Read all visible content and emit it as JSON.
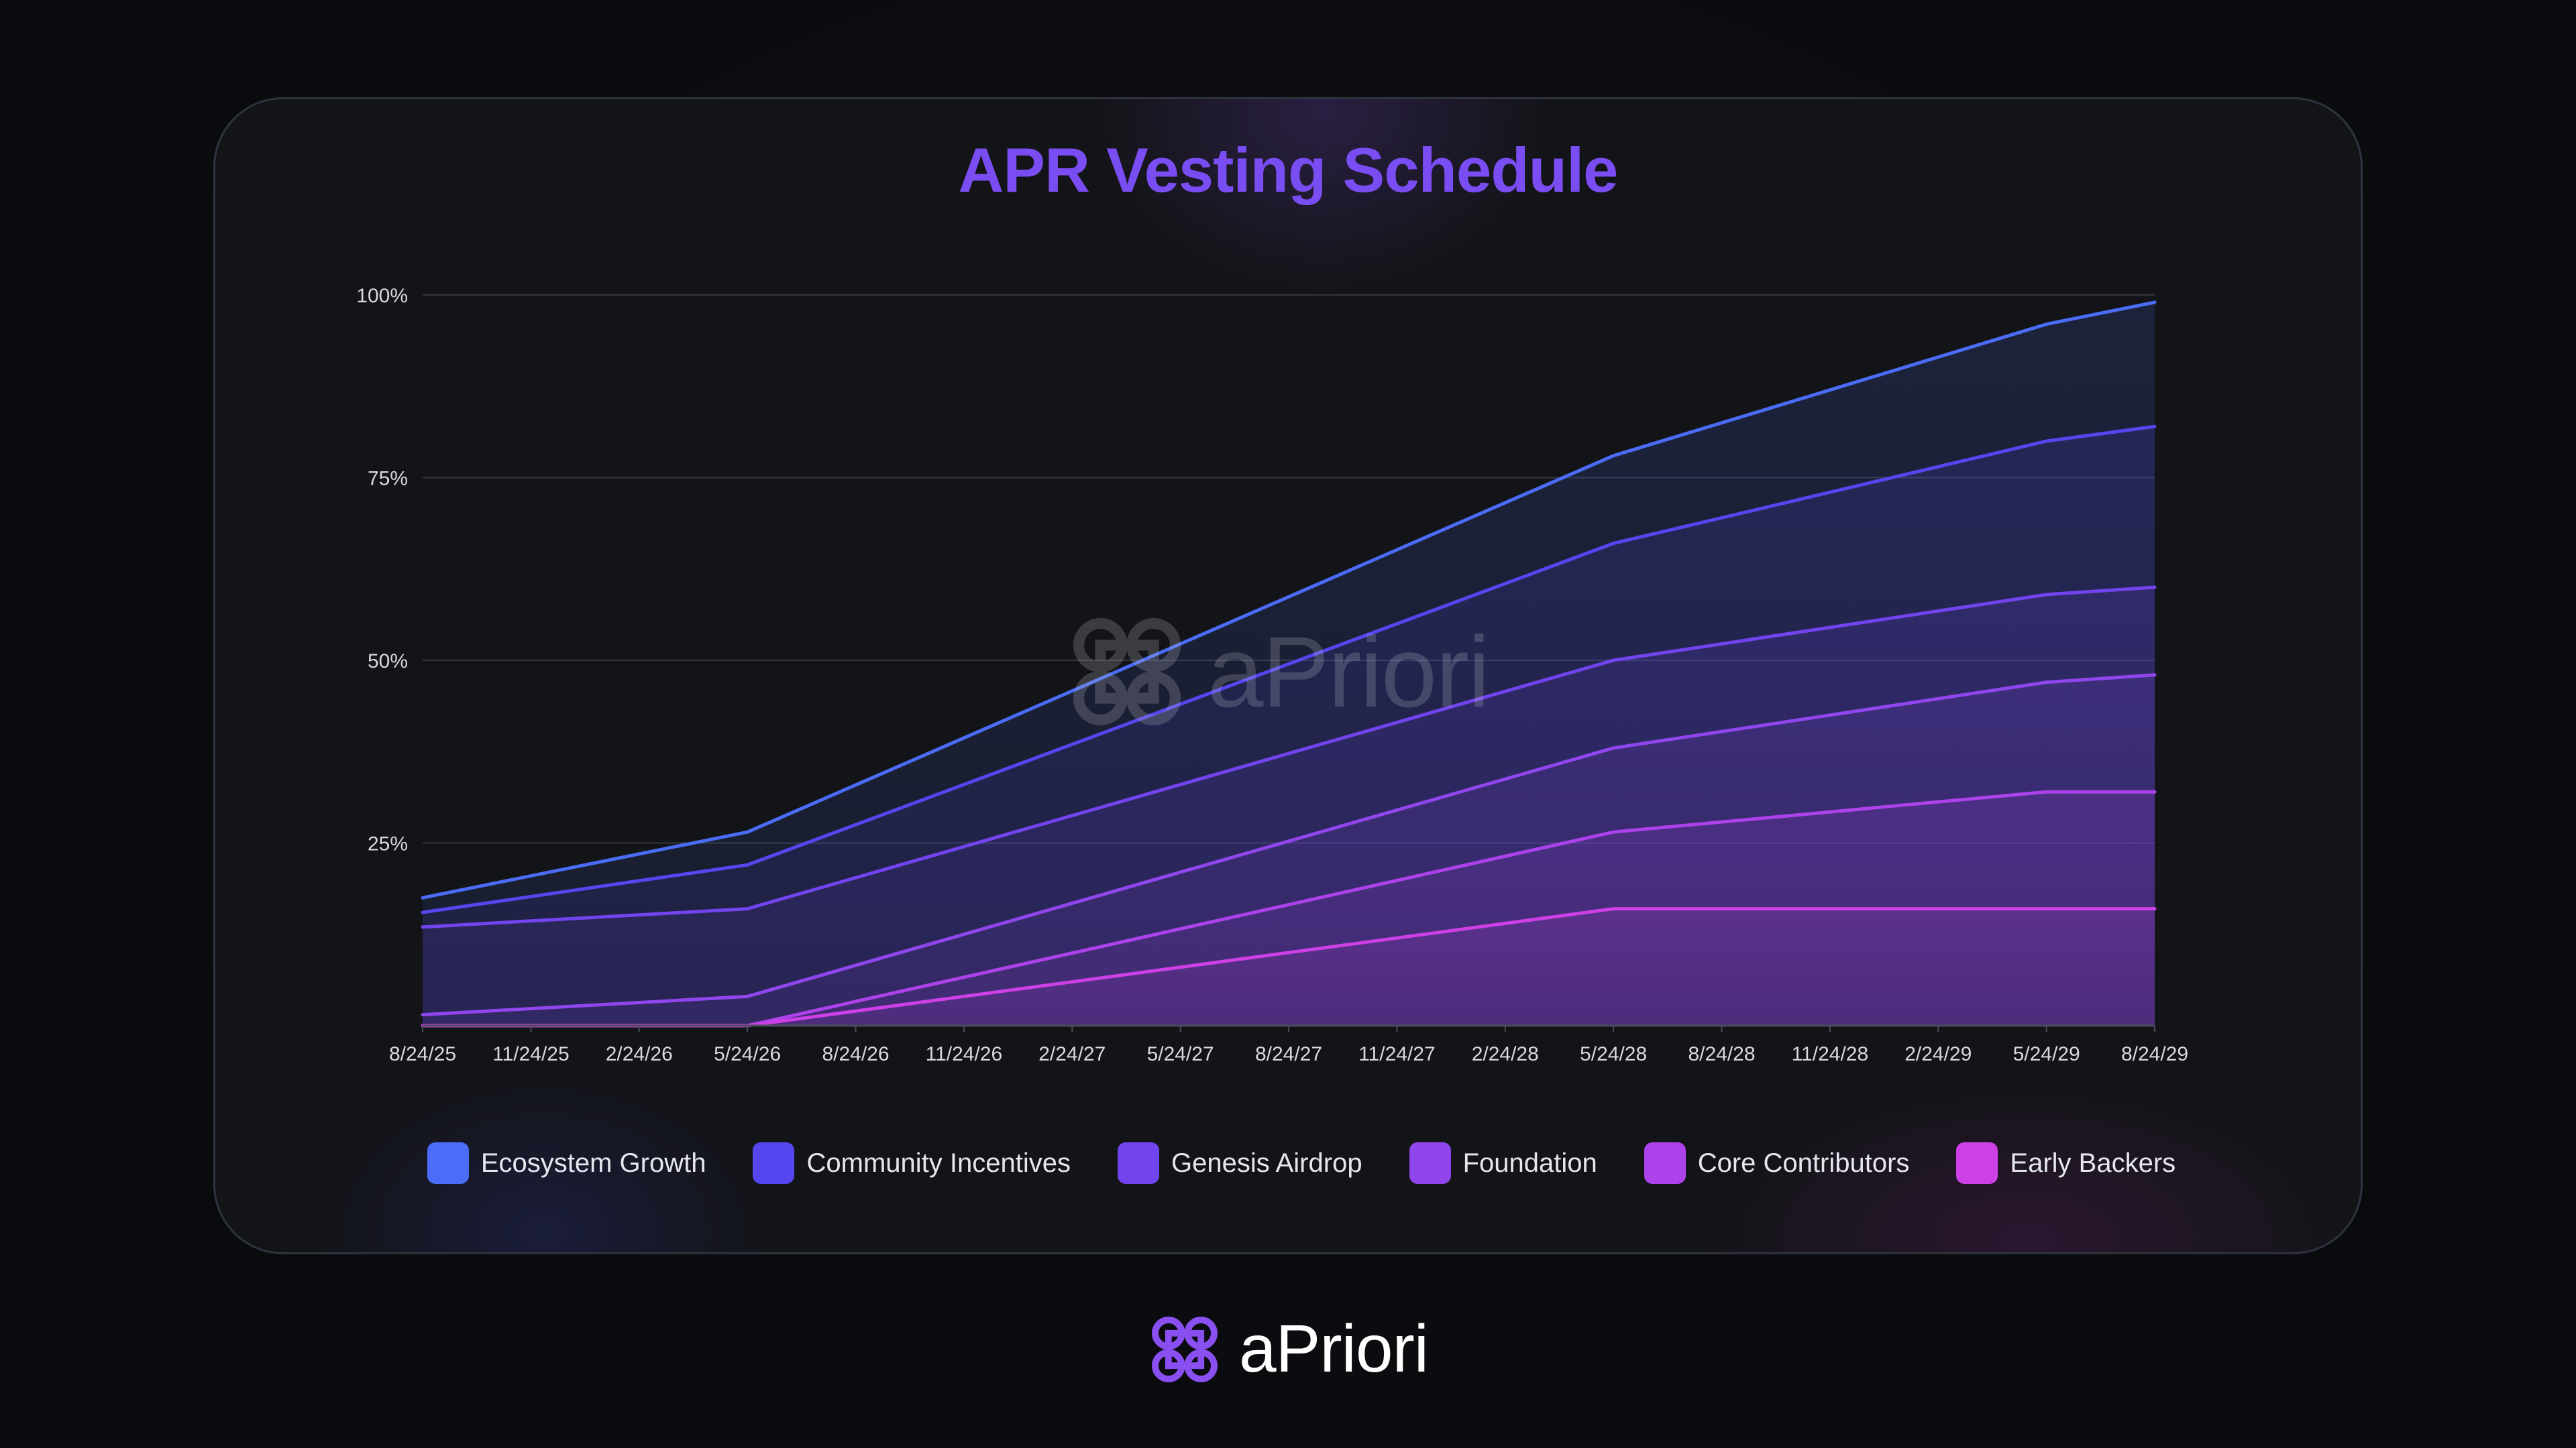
{
  "chart_data": {
    "type": "area",
    "title": "APR Vesting Schedule",
    "xlabel": "",
    "ylabel": "",
    "ylim": [
      0,
      100
    ],
    "yticks": [
      "100%",
      "75%",
      "50%",
      "25%"
    ],
    "ytick_values": [
      100,
      75,
      50,
      25
    ],
    "grid": true,
    "legend_position": "bottom",
    "categories": [
      "8/24/25",
      "11/24/25",
      "2/24/26",
      "5/24/26",
      "8/24/26",
      "11/24/26",
      "2/24/27",
      "5/24/27",
      "8/24/27",
      "11/24/27",
      "2/24/28",
      "5/24/28",
      "8/24/28",
      "11/24/28",
      "2/24/29",
      "5/24/29",
      "8/24/29"
    ],
    "series": [
      {
        "name": "Ecosystem Growth",
        "color": "#4a6cf7",
        "points": [
          [
            0,
            17.5
          ],
          [
            3,
            26.5
          ],
          [
            11,
            78
          ],
          [
            15,
            96
          ],
          [
            16,
            99
          ]
        ]
      },
      {
        "name": "Community Incentives",
        "color": "#5646f0",
        "points": [
          [
            0,
            15.5
          ],
          [
            3,
            22
          ],
          [
            11,
            66
          ],
          [
            15,
            80
          ],
          [
            16,
            82
          ]
        ]
      },
      {
        "name": "Genesis Airdrop",
        "color": "#7244ee",
        "points": [
          [
            0,
            13.5
          ],
          [
            3,
            16
          ],
          [
            11,
            50
          ],
          [
            15,
            59
          ],
          [
            16,
            60
          ]
        ]
      },
      {
        "name": "Foundation",
        "color": "#9046ec",
        "points": [
          [
            0,
            1.5
          ],
          [
            3,
            4
          ],
          [
            11,
            38
          ],
          [
            15,
            47
          ],
          [
            16,
            48
          ]
        ]
      },
      {
        "name": "Core Contributors",
        "color": "#ad42ea",
        "points": [
          [
            0,
            0
          ],
          [
            3,
            0
          ],
          [
            11,
            26.5
          ],
          [
            15,
            32
          ],
          [
            16,
            32
          ]
        ]
      },
      {
        "name": "Early Backers",
        "color": "#cc40e6",
        "points": [
          [
            0,
            0
          ],
          [
            3,
            0
          ],
          [
            11,
            16
          ],
          [
            15,
            16
          ],
          [
            16,
            16
          ]
        ]
      }
    ]
  },
  "watermark": {
    "name": "aPriori",
    "icon": "apriori-logo-icon"
  },
  "brand": {
    "name": "aPriori",
    "icon": "apriori-logo-icon",
    "color": "#8a4ff0"
  }
}
